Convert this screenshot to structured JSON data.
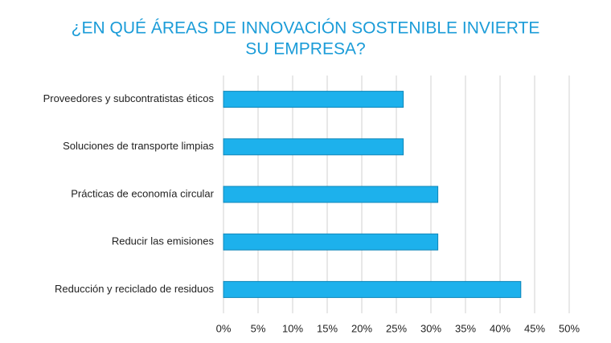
{
  "chart_data": {
    "type": "hbar",
    "title": [
      "¿EN QUÉ ÁREAS DE INNOVACIÓN SOSTENIBLE INVIERTE",
      "SU EMPRESA?"
    ],
    "categories": [
      "Proveedores y subcontratistas éticos",
      "Soluciones de transporte limpias",
      "Prácticas de economía circular",
      "Reducir las emisiones",
      "Reducción y reciclado de residuos"
    ],
    "values": [
      26,
      26,
      31,
      31,
      43
    ],
    "color": "#1db1ec",
    "xlim": [
      0,
      50
    ],
    "xticks": [
      {
        "value": 0,
        "label": "0%"
      },
      {
        "value": 5,
        "label": "5%"
      },
      {
        "value": 10,
        "label": "10%"
      },
      {
        "value": 15,
        "label": "15%"
      },
      {
        "value": 20,
        "label": "20%"
      },
      {
        "value": 25,
        "label": "25%"
      },
      {
        "value": 30,
        "label": "30%"
      },
      {
        "value": 35,
        "label": "35%"
      },
      {
        "value": 40,
        "label": "40%"
      },
      {
        "value": 45,
        "label": "45%"
      },
      {
        "value": 50,
        "label": "50%"
      }
    ],
    "grid": true
  }
}
